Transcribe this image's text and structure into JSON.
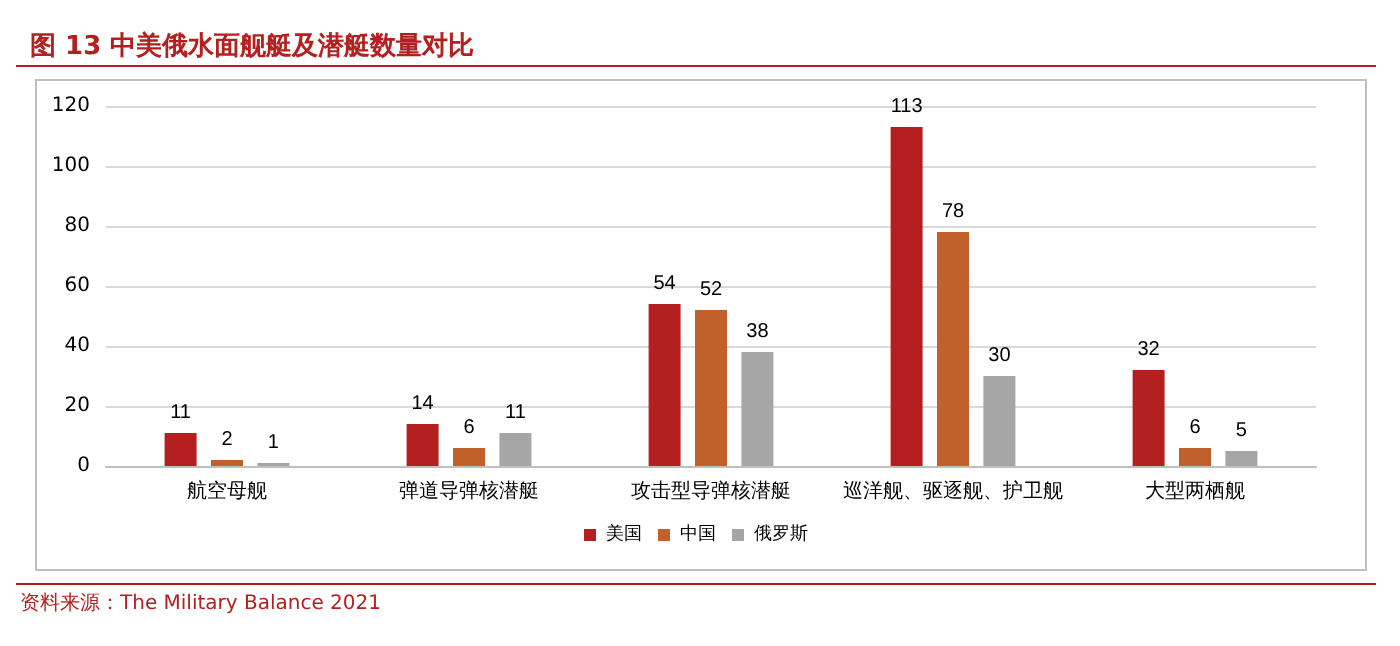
{
  "chart_data": {
    "type": "bar",
    "title": "图 13 中美俄水面舰艇及潜艇数量对比",
    "categories": [
      "航空母舰",
      "弹道导弹核潜艇",
      "攻击型导弹核潜艇",
      "巡洋舰、驱逐舰、护卫舰",
      "大型两栖舰"
    ],
    "series": [
      {
        "name": "美国",
        "color": "#b3201f",
        "values": [
          11,
          14,
          54,
          113,
          32
        ]
      },
      {
        "name": "中国",
        "color": "#c0612b",
        "values": [
          2,
          6,
          52,
          78,
          6
        ]
      },
      {
        "name": "俄罗斯",
        "color": "#a6a6a6",
        "values": [
          1,
          11,
          38,
          30,
          5
        ]
      }
    ],
    "ylim": [
      0,
      120
    ],
    "yticks": [
      0,
      20,
      40,
      60,
      80,
      100,
      120
    ],
    "grid": "y",
    "legend": "bottom",
    "data_labels": true,
    "annotations": [
      "资料来源：The Military Balance 2021"
    ]
  }
}
